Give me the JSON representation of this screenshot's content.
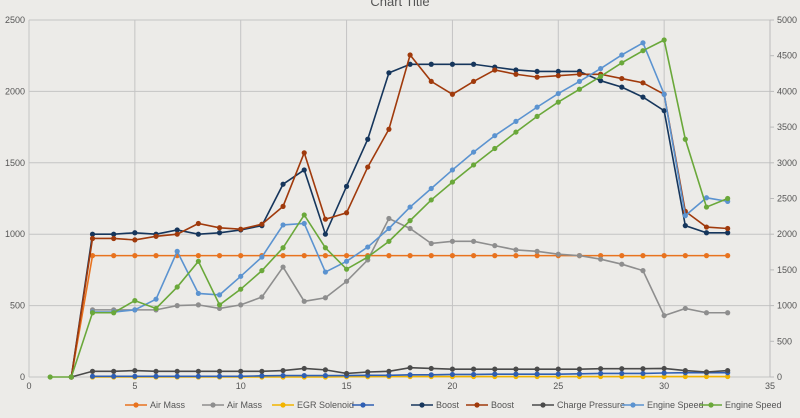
{
  "chart_data": {
    "type": "line",
    "title": "Chart Title",
    "x": [
      1,
      2,
      3,
      4,
      5,
      6,
      7,
      8,
      9,
      10,
      11,
      12,
      13,
      14,
      15,
      16,
      17,
      18,
      19,
      20,
      21,
      22,
      23,
      24,
      25,
      26,
      27,
      28,
      29,
      30,
      31,
      32,
      33
    ],
    "xlim": [
      0,
      35
    ],
    "xticks": [
      "0",
      "5",
      "10",
      "15",
      "20",
      "25",
      "30",
      "35"
    ],
    "ylim": [
      0,
      2500
    ],
    "yticks": [
      "0",
      "500",
      "1000",
      "1500",
      "2000",
      "2500"
    ],
    "y2lim": [
      0,
      5000
    ],
    "y2ticks": [
      "0",
      "500",
      "1000",
      "1500",
      "2000",
      "2500",
      "3000",
      "3500",
      "4000",
      "4500",
      "5000"
    ],
    "grid": true,
    "legend": "bottom",
    "series": [
      {
        "name": "Air Mass",
        "color": "#e8731f",
        "axis": "primary",
        "values": [
          null,
          0,
          850,
          850,
          850,
          850,
          850,
          850,
          850,
          850,
          850,
          850,
          850,
          850,
          850,
          850,
          850,
          850,
          850,
          850,
          850,
          850,
          850,
          850,
          850,
          850,
          850,
          850,
          850,
          850,
          850,
          850,
          850
        ]
      },
      {
        "name": "Air Mass",
        "color": "#8e8e8e",
        "axis": "primary",
        "values": [
          null,
          null,
          470,
          470,
          470,
          470,
          500,
          505,
          480,
          505,
          560,
          770,
          530,
          555,
          670,
          820,
          1110,
          1040,
          935,
          950,
          950,
          920,
          890,
          880,
          860,
          850,
          825,
          790,
          745,
          430,
          480,
          450,
          450
        ]
      },
      {
        "name": "EGR Solenoid",
        "color": "#f2b400",
        "axis": "primary",
        "values": [
          null,
          null,
          0,
          0,
          0,
          0,
          0,
          0,
          0,
          0,
          0,
          0,
          0,
          0,
          2,
          2,
          3,
          3,
          3,
          3,
          3,
          3,
          3,
          3,
          3,
          3,
          3,
          3,
          3,
          3,
          3,
          3,
          3
        ]
      },
      {
        "name": "",
        "color": "#2f5fb3",
        "axis": "primary",
        "values": [
          null,
          null,
          5,
          5,
          5,
          5,
          5,
          5,
          5,
          5,
          8,
          10,
          10,
          10,
          10,
          12,
          12,
          15,
          15,
          18,
          18,
          20,
          20,
          20,
          20,
          22,
          25,
          25,
          25,
          28,
          30,
          30,
          30
        ]
      },
      {
        "name": "Boost",
        "color": "#16365c",
        "axis": "primary",
        "values": [
          null,
          0,
          1000,
          1000,
          1010,
          1000,
          1030,
          1000,
          1010,
          1030,
          1060,
          1350,
          1450,
          1000,
          1335,
          1665,
          2130,
          2190,
          2190,
          2190,
          2190,
          2170,
          2150,
          2140,
          2140,
          2140,
          2075,
          2030,
          1960,
          1865,
          1060,
          1010,
          1010
        ]
      },
      {
        "name": "Boost",
        "color": "#a03a0c",
        "axis": "primary",
        "values": [
          null,
          0,
          970,
          970,
          960,
          985,
          1000,
          1075,
          1045,
          1035,
          1070,
          1195,
          1570,
          1105,
          1150,
          1470,
          1735,
          2255,
          2070,
          1980,
          2070,
          2150,
          2120,
          2100,
          2110,
          2120,
          2120,
          2090,
          2060,
          1980,
          1160,
          1050,
          1040
        ]
      },
      {
        "name": "Charge Pressure",
        "color": "#4a4a4a",
        "axis": "primary",
        "values": [
          null,
          0,
          40,
          40,
          45,
          40,
          40,
          40,
          40,
          40,
          40,
          45,
          60,
          50,
          25,
          35,
          40,
          65,
          60,
          55,
          55,
          55,
          55,
          55,
          55,
          55,
          58,
          58,
          58,
          60,
          45,
          35,
          45
        ]
      },
      {
        "name": "Engine Speed",
        "color": "#5b93d0",
        "axis": "secondary",
        "values": [
          null,
          null,
          910,
          910,
          940,
          1090,
          1760,
          1170,
          1150,
          1410,
          1680,
          2130,
          2150,
          1470,
          1620,
          1820,
          2080,
          2380,
          2640,
          2900,
          3150,
          3380,
          3580,
          3780,
          3970,
          4140,
          4320,
          4510,
          4680,
          3960,
          2260,
          2510,
          2460
        ]
      },
      {
        "name": "Engine Speed",
        "color": "#6aa83a",
        "axis": "secondary",
        "values": [
          0,
          0,
          900,
          900,
          1070,
          960,
          1260,
          1620,
          1010,
          1230,
          1490,
          1810,
          2270,
          1810,
          1510,
          1680,
          1900,
          2190,
          2480,
          2730,
          2970,
          3200,
          3430,
          3650,
          3850,
          4030,
          4210,
          4400,
          4570,
          4720,
          3330,
          2380,
          2500
        ]
      }
    ]
  }
}
